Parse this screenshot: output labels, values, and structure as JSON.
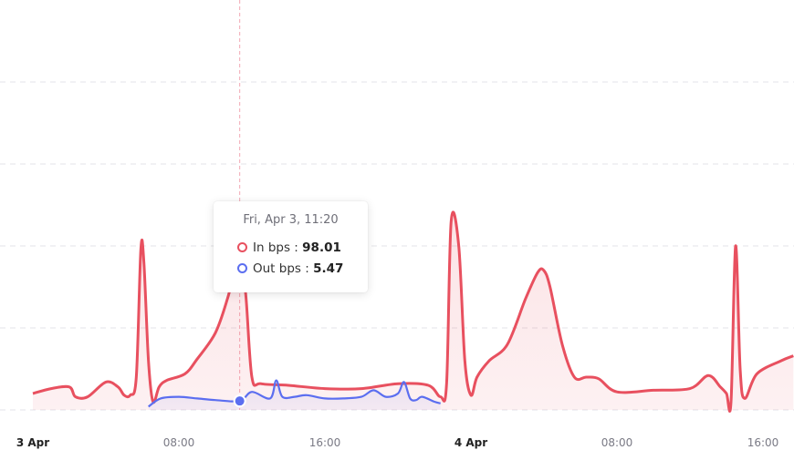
{
  "colors": {
    "in": "#e8505f",
    "out": "#5b6ef0",
    "grid": "#e3e3e8",
    "crosshair": "#f2a8b4"
  },
  "tooltip": {
    "title": "Fri, Apr 3, 11:20",
    "in_label": "In bps",
    "in_sep": " : ",
    "in_value": "98.01",
    "out_label": "Out bps",
    "out_sep": " : ",
    "out_value": "5.47"
  },
  "chart_data": {
    "type": "area",
    "x_ticks": [
      {
        "label": "3 Apr",
        "major": true,
        "x": "2020-04-03 00:00"
      },
      {
        "label": "08:00",
        "major": false,
        "x": "2020-04-03 08:00"
      },
      {
        "label": "16:00",
        "major": false,
        "x": "2020-04-03 16:00"
      },
      {
        "label": "4 Apr",
        "major": true,
        "x": "2020-04-04 00:00"
      },
      {
        "label": "08:00",
        "major": false,
        "x": "2020-04-04 08:00"
      },
      {
        "label": "16:00",
        "major": false,
        "x": "2020-04-04 16:00"
      }
    ],
    "y_range": [
      0,
      230
    ],
    "y_gridlines": [
      0,
      50,
      100,
      150,
      200
    ],
    "grid": true,
    "crosshair_x": "2020-04-03 11:20",
    "series": [
      {
        "name": "In bps",
        "key": "in",
        "points": [
          [
            "2020-04-03 00:00",
            10
          ],
          [
            "2020-04-03 01:00",
            13
          ],
          [
            "2020-04-03 02:00",
            14
          ],
          [
            "2020-04-03 02:20",
            8
          ],
          [
            "2020-04-03 03:00",
            8
          ],
          [
            "2020-04-03 04:00",
            17
          ],
          [
            "2020-04-03 04:40",
            14
          ],
          [
            "2020-04-03 05:00",
            9
          ],
          [
            "2020-04-03 05:20",
            9
          ],
          [
            "2020-04-03 05:40",
            20
          ],
          [
            "2020-04-03 05:55",
            98
          ],
          [
            "2020-04-03 06:05",
            90
          ],
          [
            "2020-04-03 06:20",
            30
          ],
          [
            "2020-04-03 06:35",
            5
          ],
          [
            "2020-04-03 06:55",
            14
          ],
          [
            "2020-04-03 07:20",
            18
          ],
          [
            "2020-04-03 08:20",
            22
          ],
          [
            "2020-04-03 09:00",
            31
          ],
          [
            "2020-04-03 10:00",
            47
          ],
          [
            "2020-04-03 10:40",
            68
          ],
          [
            "2020-04-03 11:00",
            83
          ],
          [
            "2020-04-03 11:20",
            98.01
          ],
          [
            "2020-04-03 11:40",
            70
          ],
          [
            "2020-04-03 12:00",
            20
          ],
          [
            "2020-04-03 12:30",
            16
          ],
          [
            "2020-04-03 14:00",
            15
          ],
          [
            "2020-04-03 16:00",
            13
          ],
          [
            "2020-04-03 18:00",
            13
          ],
          [
            "2020-04-03 20:00",
            16
          ],
          [
            "2020-04-03 21:40",
            15
          ],
          [
            "2020-04-03 22:20",
            8
          ],
          [
            "2020-04-03 22:40",
            16
          ],
          [
            "2020-04-03 22:55",
            115
          ],
          [
            "2020-04-03 23:20",
            100
          ],
          [
            "2020-04-03 23:40",
            30
          ],
          [
            "2020-04-04 00:00",
            9
          ],
          [
            "2020-04-04 00:20",
            20
          ],
          [
            "2020-04-04 01:00",
            30
          ],
          [
            "2020-04-04 02:00",
            40
          ],
          [
            "2020-04-04 03:00",
            68
          ],
          [
            "2020-04-04 03:40",
            84
          ],
          [
            "2020-04-04 04:00",
            85
          ],
          [
            "2020-04-04 04:20",
            75
          ],
          [
            "2020-04-04 05:00",
            40
          ],
          [
            "2020-04-04 05:40",
            20
          ],
          [
            "2020-04-04 06:20",
            20
          ],
          [
            "2020-04-04 07:00",
            19
          ],
          [
            "2020-04-04 08:00",
            11
          ],
          [
            "2020-04-04 10:00",
            12
          ],
          [
            "2020-04-04 12:00",
            13
          ],
          [
            "2020-04-04 13:00",
            21
          ],
          [
            "2020-04-04 13:40",
            14
          ],
          [
            "2020-04-04 14:00",
            10
          ],
          [
            "2020-04-04 14:15",
            5
          ],
          [
            "2020-04-04 14:30",
            100
          ],
          [
            "2020-04-04 14:45",
            25
          ],
          [
            "2020-04-04 15:00",
            7
          ],
          [
            "2020-04-04 15:40",
            22
          ],
          [
            "2020-04-04 17:00",
            30
          ],
          [
            "2020-04-04 17:40",
            33
          ]
        ]
      },
      {
        "name": "Out bps",
        "key": "out",
        "points": [
          [
            "2020-04-03 06:20",
            2
          ],
          [
            "2020-04-03 07:00",
            7
          ],
          [
            "2020-04-03 08:00",
            8
          ],
          [
            "2020-04-03 09:00",
            7
          ],
          [
            "2020-04-03 10:00",
            6
          ],
          [
            "2020-04-03 11:20",
            5.47
          ],
          [
            "2020-04-03 12:00",
            11
          ],
          [
            "2020-04-03 13:00",
            7
          ],
          [
            "2020-04-03 13:20",
            18
          ],
          [
            "2020-04-03 13:40",
            8
          ],
          [
            "2020-04-03 14:20",
            8
          ],
          [
            "2020-04-03 15:00",
            9
          ],
          [
            "2020-04-03 16:00",
            7
          ],
          [
            "2020-04-03 17:00",
            7
          ],
          [
            "2020-04-03 18:00",
            8
          ],
          [
            "2020-04-03 18:40",
            12
          ],
          [
            "2020-04-03 19:20",
            8
          ],
          [
            "2020-04-03 20:00",
            10
          ],
          [
            "2020-04-03 20:20",
            17
          ],
          [
            "2020-04-03 20:40",
            7
          ],
          [
            "2020-04-03 21:00",
            6
          ],
          [
            "2020-04-03 21:20",
            8
          ],
          [
            "2020-04-03 22:00",
            5
          ],
          [
            "2020-04-03 22:20",
            4
          ]
        ]
      }
    ]
  }
}
